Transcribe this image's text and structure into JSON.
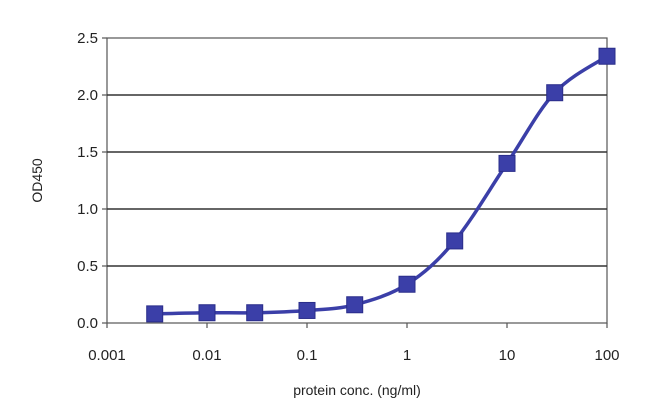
{
  "chart_data": {
    "type": "line",
    "title": "",
    "xlabel": "protein conc. (ng/ml)",
    "ylabel": "OD450",
    "x_scale": "log",
    "xlim": [
      0.001,
      100
    ],
    "ylim": [
      0,
      2.5
    ],
    "x_ticks": [
      0.001,
      0.01,
      0.1,
      1,
      10,
      100
    ],
    "x_tick_labels": [
      "0.001",
      "0.01",
      "0.1",
      "1",
      "10",
      "100"
    ],
    "y_ticks": [
      0,
      0.5,
      1,
      1.5,
      2,
      2.5
    ],
    "y_tick_labels": [
      "0.0",
      "0.5",
      "1.0",
      "1.5",
      "2.0",
      "2.5"
    ],
    "grid": {
      "horizontal": true,
      "vertical": false
    },
    "legend": "none",
    "marker": "square",
    "series": [
      {
        "x": [
          0.003,
          0.01,
          0.03,
          0.1,
          0.3,
          1,
          3,
          10,
          30,
          100
        ],
        "y": [
          0.08,
          0.09,
          0.09,
          0.11,
          0.16,
          0.34,
          0.72,
          1.4,
          2.02,
          2.34
        ],
        "color": "#3b3fa8"
      }
    ]
  }
}
